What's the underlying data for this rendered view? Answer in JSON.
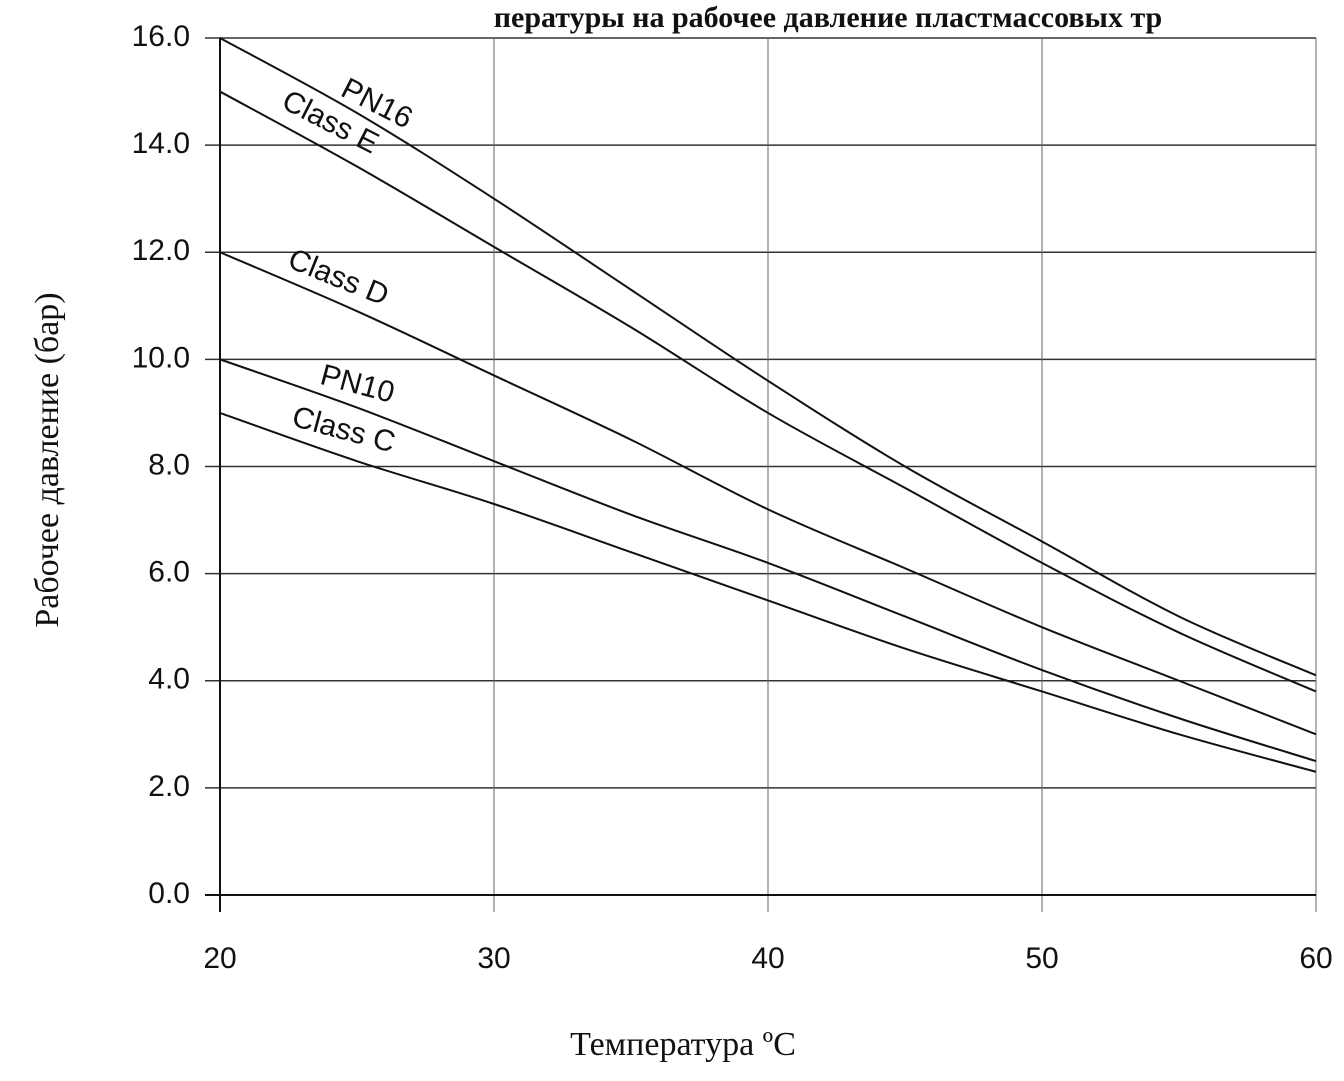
{
  "chart_data": {
    "type": "line",
    "title": "пературы на рабочее давление пластмассовых тр",
    "xlabel": "Температура ºC",
    "ylabel": "Рабочее давление (бар)",
    "xlim": [
      20,
      60
    ],
    "ylim": [
      0,
      16
    ],
    "x_ticks": [
      20,
      30,
      40,
      50,
      60
    ],
    "y_ticks": [
      "0.0",
      "2.0",
      "4.0",
      "6.0",
      "8.0",
      "10.0",
      "12.0",
      "14.0",
      "16.0"
    ],
    "grid": true,
    "legend": "labels on lines",
    "series": [
      {
        "name": "PN16",
        "x": [
          20,
          25,
          30,
          35,
          40,
          45,
          50,
          55,
          60
        ],
        "y": [
          16.0,
          14.6,
          13.0,
          11.3,
          9.6,
          8.0,
          6.6,
          5.2,
          4.1
        ]
      },
      {
        "name": "Class E",
        "x": [
          20,
          25,
          30,
          35,
          40,
          45,
          50,
          55,
          60
        ],
        "y": [
          15.0,
          13.6,
          12.1,
          10.6,
          9.0,
          7.6,
          6.2,
          4.9,
          3.8
        ]
      },
      {
        "name": "Class D",
        "x": [
          20,
          25,
          30,
          35,
          40,
          45,
          50,
          55,
          60
        ],
        "y": [
          12.0,
          10.9,
          9.7,
          8.5,
          7.2,
          6.1,
          5.0,
          4.0,
          3.0
        ]
      },
      {
        "name": "PN10",
        "x": [
          20,
          25,
          30,
          35,
          40,
          45,
          50,
          55,
          60
        ],
        "y": [
          10.0,
          9.1,
          8.1,
          7.1,
          6.2,
          5.2,
          4.2,
          3.3,
          2.5
        ]
      },
      {
        "name": "Class C",
        "x": [
          20,
          25,
          30,
          35,
          40,
          45,
          50,
          55,
          60
        ],
        "y": [
          9.0,
          8.1,
          7.3,
          6.4,
          5.5,
          4.6,
          3.8,
          3.0,
          2.3
        ]
      }
    ]
  }
}
